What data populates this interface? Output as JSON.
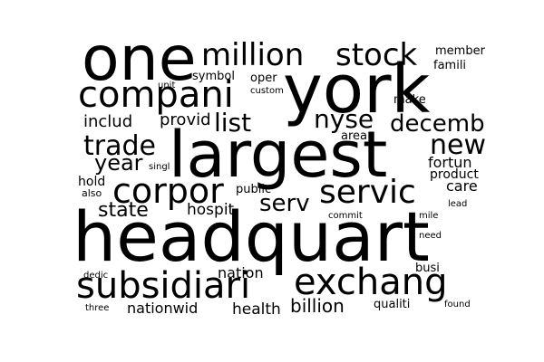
{
  "word_cloud": {
    "background": "#ffffff",
    "text_color": "#000000",
    "words": [
      {
        "text": "headquart"
      },
      {
        "text": "largest"
      },
      {
        "text": "york"
      },
      {
        "text": "one"
      },
      {
        "text": "compani"
      },
      {
        "text": "subsidiari"
      },
      {
        "text": "exchang"
      },
      {
        "text": "corpor"
      },
      {
        "text": "servic"
      },
      {
        "text": "million"
      },
      {
        "text": "stock"
      },
      {
        "text": "list"
      },
      {
        "text": "nyse"
      },
      {
        "text": "decemb"
      },
      {
        "text": "trade"
      },
      {
        "text": "new"
      },
      {
        "text": "year"
      },
      {
        "text": "serv"
      },
      {
        "text": "state"
      },
      {
        "text": "billion"
      },
      {
        "text": "includ"
      },
      {
        "text": "provid"
      },
      {
        "text": "hospit"
      },
      {
        "text": "nation"
      },
      {
        "text": "health"
      },
      {
        "text": "nationwid"
      },
      {
        "text": "fortun"
      },
      {
        "text": "product"
      },
      {
        "text": "care"
      },
      {
        "text": "hold"
      },
      {
        "text": "public"
      },
      {
        "text": "member"
      },
      {
        "text": "famili"
      },
      {
        "text": "symbol"
      },
      {
        "text": "oper"
      },
      {
        "text": "custom"
      },
      {
        "text": "unit"
      },
      {
        "text": "make"
      },
      {
        "text": "area"
      },
      {
        "text": "singl"
      },
      {
        "text": "also"
      },
      {
        "text": "lead"
      },
      {
        "text": "commit"
      },
      {
        "text": "mile"
      },
      {
        "text": "need"
      },
      {
        "text": "busi"
      },
      {
        "text": "dedic"
      },
      {
        "text": "qualiti"
      },
      {
        "text": "three"
      },
      {
        "text": "found"
      }
    ]
  }
}
